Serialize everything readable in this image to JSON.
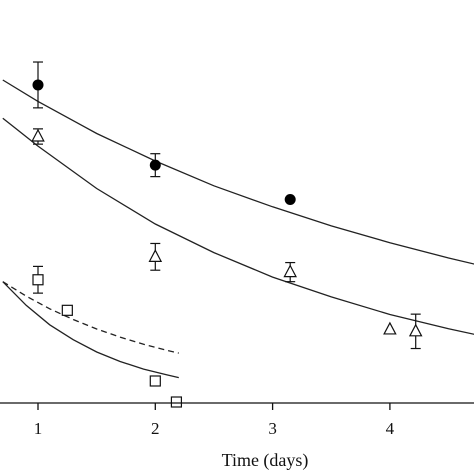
{
  "chart_data": {
    "type": "scatter",
    "xlabel": "Time (days)",
    "ylabel": "",
    "title": "",
    "xlim": [
      0.7,
      4.75
    ],
    "ylim": [
      0,
      1
    ],
    "x_ticks": [
      {
        "value": 1,
        "label": "1"
      },
      {
        "value": 2,
        "label": "2"
      },
      {
        "value": 3,
        "label": "3"
      },
      {
        "value": 4,
        "label": "4"
      }
    ],
    "grid": false,
    "legend": "none",
    "series": [
      {
        "marker": "filled-circle",
        "points": [
          {
            "x": 1.0,
            "y": 0.83,
            "err": 0.06
          },
          {
            "x": 2.0,
            "y": 0.62,
            "err": 0.03
          },
          {
            "x": 3.15,
            "y": 0.53,
            "err": 0
          }
        ]
      },
      {
        "marker": "open-triangle",
        "points": [
          {
            "x": 1.0,
            "y": 0.695,
            "err": 0.02
          },
          {
            "x": 2.0,
            "y": 0.38,
            "err": 0.035
          },
          {
            "x": 3.15,
            "y": 0.34,
            "err": 0.025
          },
          {
            "x": 4.0,
            "y": 0.19,
            "err": 0
          },
          {
            "x": 4.22,
            "y": 0.185,
            "err": 0.045
          }
        ]
      },
      {
        "marker": "open-square",
        "points": [
          {
            "x": 1.0,
            "y": 0.32,
            "err": 0.035
          },
          {
            "x": 1.25,
            "y": 0.24,
            "err": 0
          },
          {
            "x": 2.0,
            "y": 0.055,
            "err": 0
          },
          {
            "x": 2.18,
            "y": 0.0,
            "err": 0
          }
        ]
      }
    ],
    "fit_curves": [
      {
        "style": "solid",
        "x_range": [
          0.7,
          4.75
        ],
        "points": [
          [
            0.7,
            0.843
          ],
          [
            1.0,
            0.787
          ],
          [
            1.5,
            0.703
          ],
          [
            2.0,
            0.631
          ],
          [
            2.5,
            0.566
          ],
          [
            3.0,
            0.511
          ],
          [
            3.5,
            0.461
          ],
          [
            4.0,
            0.417
          ],
          [
            4.5,
            0.377
          ],
          [
            4.75,
            0.359
          ]
        ]
      },
      {
        "style": "solid",
        "x_range": [
          0.7,
          4.75
        ],
        "points": [
          [
            0.7,
            0.743
          ],
          [
            1.0,
            0.67
          ],
          [
            1.5,
            0.559
          ],
          [
            2.0,
            0.466
          ],
          [
            2.5,
            0.391
          ],
          [
            3.0,
            0.327
          ],
          [
            3.5,
            0.275
          ],
          [
            4.0,
            0.229
          ],
          [
            4.5,
            0.192
          ],
          [
            4.75,
            0.175
          ]
        ]
      },
      {
        "style": "solid",
        "x_range": [
          0.7,
          2.2
        ],
        "points": [
          [
            0.7,
            0.315
          ],
          [
            0.9,
            0.253
          ],
          [
            1.1,
            0.202
          ],
          [
            1.3,
            0.163
          ],
          [
            1.5,
            0.131
          ],
          [
            1.7,
            0.106
          ],
          [
            1.9,
            0.086
          ],
          [
            2.1,
            0.071
          ],
          [
            2.2,
            0.064
          ]
        ]
      },
      {
        "style": "dashed",
        "x_range": [
          0.7,
          2.2
        ],
        "points": [
          [
            0.7,
            0.315
          ],
          [
            0.9,
            0.277
          ],
          [
            1.1,
            0.244
          ],
          [
            1.3,
            0.216
          ],
          [
            1.5,
            0.191
          ],
          [
            1.7,
            0.17
          ],
          [
            1.9,
            0.151
          ],
          [
            2.1,
            0.135
          ],
          [
            2.2,
            0.128
          ]
        ]
      }
    ]
  }
}
